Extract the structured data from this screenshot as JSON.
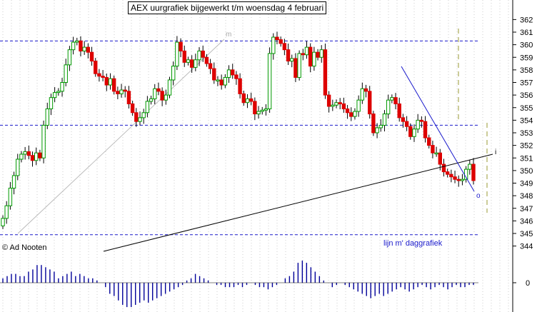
{
  "title": "AEX uurgrafiek bijgewerkt t/m woensdag 4 februari",
  "copyright": "© Ad Nooten",
  "annotation": "lijn m' daggrafiek",
  "markers": {
    "m": "m",
    "i": "i",
    "o": "o"
  },
  "colors": {
    "up_candle": "#009900",
    "down_candle": "#dd0000",
    "level_line": "#1a1acc",
    "trend_line": "#000000",
    "helper_line": "#bbbbbb",
    "projection": "#999933",
    "histogram": "#000099",
    "grid": "#cccccc"
  },
  "chart_data": {
    "type": "candlestick",
    "price_axis": {
      "ticks": [
        344,
        345,
        346,
        347,
        348,
        349,
        350,
        351,
        352,
        353,
        354,
        355,
        356,
        357,
        358,
        359,
        360,
        361,
        362
      ],
      "range": [
        344,
        362.4
      ]
    },
    "histogram_axis": {
      "ticks": [
        0
      ]
    },
    "levels": [
      360.3,
      353.6,
      344.9
    ],
    "closes": [
      346.2,
      347.2,
      348.6,
      349.6,
      350.9,
      351.3,
      351.5,
      351.2,
      350.8,
      351.4,
      351.0,
      353.6,
      354.9,
      355.8,
      356.2,
      356.3,
      357.0,
      358.4,
      359.6,
      360.2,
      360.3,
      359.5,
      359.8,
      359.4,
      358.7,
      357.7,
      357.5,
      357.4,
      356.8,
      357.3,
      356.3,
      356.1,
      356.4,
      356.3,
      355.3,
      354.6,
      353.9,
      354.2,
      354.6,
      355.5,
      355.7,
      356.5,
      356.3,
      355.6,
      356.0,
      357.2,
      358.3,
      360.2,
      359.5,
      358.6,
      358.8,
      358.2,
      358.8,
      359.5,
      359.0,
      358.5,
      358.1,
      357.2,
      357.2,
      356.8,
      357.4,
      358.0,
      357.6,
      357.3,
      356.1,
      355.4,
      355.7,
      355.5,
      354.5,
      354.7,
      354.8,
      354.9,
      359.3,
      360.6,
      360.4,
      360.1,
      359.6,
      358.7,
      358.9,
      357.4,
      359.3,
      359.2,
      359.8,
      358.3,
      359.4,
      359.0,
      359.6,
      356.0,
      355.1,
      355.2,
      355.4,
      355.3,
      354.9,
      354.6,
      354.3,
      354.7,
      355.6,
      356.5,
      356.3,
      354.5,
      353.0,
      353.4,
      353.6,
      354.5,
      355.6,
      355.8,
      355.3,
      354.2,
      353.9,
      353.5,
      352.7,
      353.3,
      354.0,
      353.9,
      352.6,
      352.0,
      351.4,
      351.4,
      350.5,
      349.9,
      349.7,
      349.5,
      349.3,
      349.2,
      349.3,
      350.1,
      350.5,
      349.2
    ],
    "histogram": [
      2,
      3,
      4,
      4,
      3,
      3,
      5,
      6,
      8,
      8,
      7,
      6,
      5,
      2,
      3,
      4,
      5,
      3,
      4,
      3,
      2,
      2,
      1,
      0,
      -2,
      -5,
      -6,
      -8,
      -10,
      -11,
      -11,
      -10,
      -9,
      -8,
      -9,
      -8,
      -7,
      -6,
      -5,
      -4,
      -3,
      -2,
      -1,
      1,
      2,
      4,
      3,
      2,
      1,
      0,
      -1,
      -1,
      -2,
      -2,
      -2,
      -1,
      -2,
      -1,
      0,
      -1,
      -2,
      -2,
      -3,
      -2,
      -1,
      0,
      2,
      3,
      5,
      9,
      10,
      9,
      7,
      5,
      3,
      1,
      0,
      -2,
      -1,
      0,
      -1,
      -2,
      -3,
      -4,
      -5,
      -6,
      -7,
      -6,
      -5,
      -6,
      -5,
      -4,
      -3,
      -2,
      -3,
      -4,
      -3,
      -2,
      -1,
      -2,
      -3,
      -2,
      -1,
      -2,
      -3,
      -2,
      -1,
      -2,
      -2,
      -1,
      -1
    ]
  }
}
